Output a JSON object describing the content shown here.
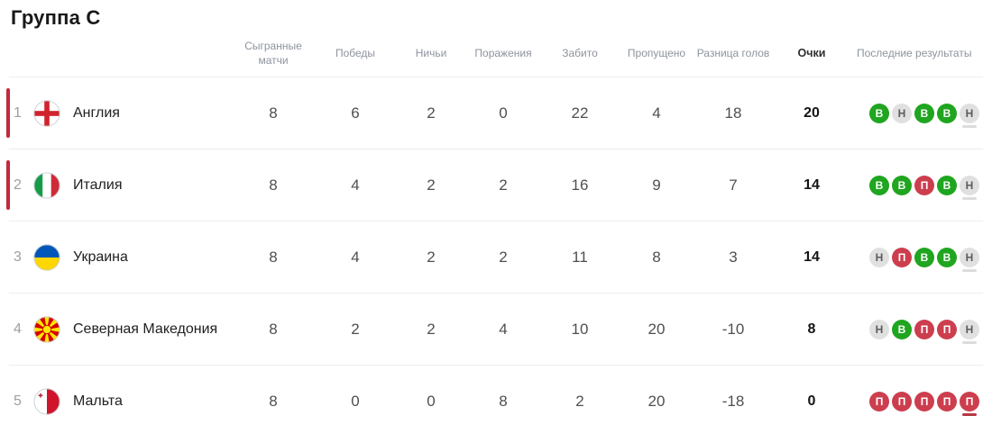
{
  "title": "Группа C",
  "colors": {
    "qualification_bar": "#c2293a",
    "win_badge": "#1fa51f",
    "loss_badge": "#cc3e4e",
    "draw_badge": "#e0e0e0"
  },
  "table": {
    "headers": {
      "played": "Сыгранные матчи",
      "wins": "Победы",
      "draws": "Ничьи",
      "losses": "Поражения",
      "scored": "Забито",
      "conceded": "Пропущено",
      "diff": "Разница голов",
      "points": "Очки",
      "results": "Последние результаты"
    },
    "rows": [
      {
        "position": "1",
        "team": "Англия",
        "flag": "england",
        "qualified": true,
        "played": "8",
        "wins": "6",
        "draws": "2",
        "losses": "0",
        "scored": "22",
        "conceded": "4",
        "diff": "18",
        "points": "20",
        "results": [
          {
            "letter": "В",
            "type": "win"
          },
          {
            "letter": "Н",
            "type": "draw"
          },
          {
            "letter": "В",
            "type": "win"
          },
          {
            "letter": "В",
            "type": "win"
          },
          {
            "letter": "Н",
            "type": "draw"
          }
        ]
      },
      {
        "position": "2",
        "team": "Италия",
        "flag": "italy",
        "qualified": true,
        "played": "8",
        "wins": "4",
        "draws": "2",
        "losses": "2",
        "scored": "16",
        "conceded": "9",
        "diff": "7",
        "points": "14",
        "results": [
          {
            "letter": "В",
            "type": "win"
          },
          {
            "letter": "В",
            "type": "win"
          },
          {
            "letter": "П",
            "type": "loss"
          },
          {
            "letter": "В",
            "type": "win"
          },
          {
            "letter": "Н",
            "type": "draw"
          }
        ]
      },
      {
        "position": "3",
        "team": "Украина",
        "flag": "ukraine",
        "qualified": false,
        "played": "8",
        "wins": "4",
        "draws": "2",
        "losses": "2",
        "scored": "11",
        "conceded": "8",
        "diff": "3",
        "points": "14",
        "results": [
          {
            "letter": "Н",
            "type": "draw"
          },
          {
            "letter": "П",
            "type": "loss"
          },
          {
            "letter": "В",
            "type": "win"
          },
          {
            "letter": "В",
            "type": "win"
          },
          {
            "letter": "Н",
            "type": "draw"
          }
        ]
      },
      {
        "position": "4",
        "team": "Северная Македония",
        "flag": "north-macedonia",
        "qualified": false,
        "played": "8",
        "wins": "2",
        "draws": "2",
        "losses": "4",
        "scored": "10",
        "conceded": "20",
        "diff": "-10",
        "points": "8",
        "results": [
          {
            "letter": "Н",
            "type": "draw"
          },
          {
            "letter": "В",
            "type": "win"
          },
          {
            "letter": "П",
            "type": "loss"
          },
          {
            "letter": "П",
            "type": "loss"
          },
          {
            "letter": "Н",
            "type": "draw"
          }
        ]
      },
      {
        "position": "5",
        "team": "Мальта",
        "flag": "malta",
        "qualified": false,
        "played": "8",
        "wins": "0",
        "draws": "0",
        "losses": "8",
        "scored": "2",
        "conceded": "20",
        "diff": "-18",
        "points": "0",
        "results": [
          {
            "letter": "П",
            "type": "loss"
          },
          {
            "letter": "П",
            "type": "loss"
          },
          {
            "letter": "П",
            "type": "loss"
          },
          {
            "letter": "П",
            "type": "loss"
          },
          {
            "letter": "П",
            "type": "loss"
          }
        ]
      }
    ]
  }
}
